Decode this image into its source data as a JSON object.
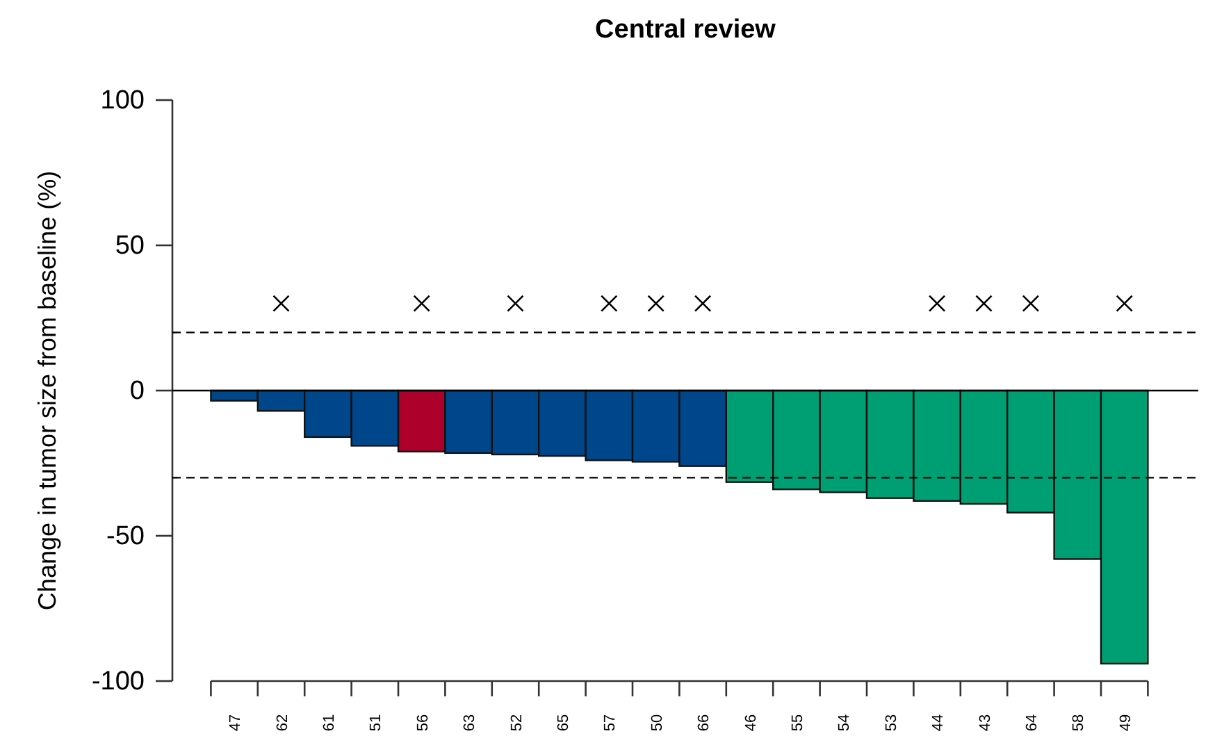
{
  "chart_data": {
    "type": "bar",
    "title": "Central review",
    "ylabel": "Change in tumor size from baseline (%)",
    "categories": [
      "47",
      "62",
      "61",
      "51",
      "56",
      "63",
      "52",
      "65",
      "57",
      "50",
      "66",
      "46",
      "55",
      "54",
      "53",
      "44",
      "43",
      "64",
      "58",
      "49"
    ],
    "series": [
      {
        "colors": [
          "#00468b",
          "#00468b",
          "#00468b",
          "#00468b",
          "#ad002a",
          "#00468b",
          "#00468b",
          "#00468b",
          "#00468b",
          "#00468b",
          "#00468b",
          "#009e73",
          "#009e73",
          "#009e73",
          "#009e73",
          "#009e73",
          "#009e73",
          "#009e73",
          "#009e73",
          "#009e73"
        ],
        "values": [
          -3.5,
          -7,
          -16,
          -19,
          -21,
          -21.5,
          -22,
          -22.5,
          -24,
          -24.5,
          -26,
          -31.5,
          -34,
          -35,
          -37,
          -38,
          -39,
          -42,
          -58,
          -94
        ]
      },
      {
        "type": "scatter",
        "color": "#000000",
        "marker": "cross",
        "x": [
          "62",
          "56",
          "52",
          "57",
          "50",
          "66",
          "44",
          "43",
          "64",
          "49"
        ],
        "values": [
          30,
          30,
          30,
          30,
          30,
          30,
          30,
          30,
          30,
          30
        ]
      }
    ],
    "ylim": [
      -100,
      100
    ],
    "yticks": [
      -100,
      -50,
      0,
      50,
      100
    ],
    "ref_lines": [
      {
        "axis": "y",
        "value": 0,
        "line_style": "solid",
        "color": "#000000"
      },
      {
        "axis": "y",
        "value": 20,
        "line_style": "dashed",
        "color": "#000000"
      },
      {
        "axis": "y",
        "value": -30,
        "line_style": "dashed",
        "color": "#000000"
      }
    ],
    "grid": false
  }
}
